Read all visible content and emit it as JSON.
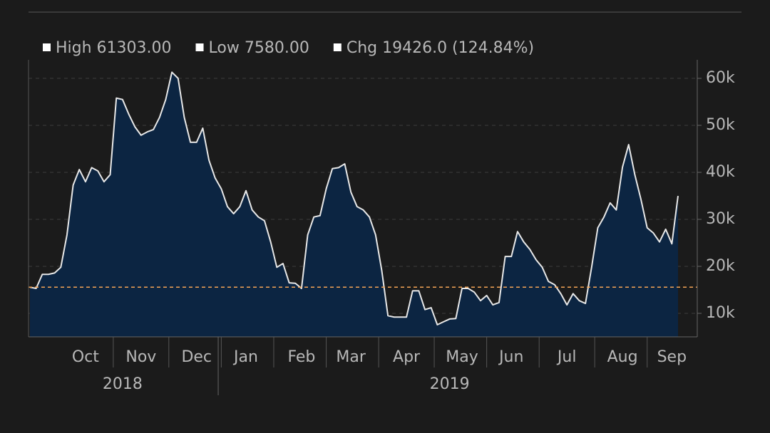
{
  "chart_data": {
    "type": "area",
    "legend_items": [
      "High 61303.00",
      "Low 7580.00",
      "Chg 19426.0 (124.84%)"
    ],
    "groups": [
      {
        "label": "2018",
        "categories": [
          null,
          null,
          null,
          null,
          null,
          null,
          null,
          null,
          null,
          "Oct",
          null,
          null,
          null,
          null,
          null,
          null,
          null,
          null,
          "Nov",
          null,
          null,
          null,
          null,
          null,
          null,
          null,
          null,
          "Dec",
          null,
          null,
          null
        ]
      },
      {
        "label": "2019",
        "categories": [
          null,
          null,
          null,
          null,
          "Jan",
          null,
          null,
          null,
          null,
          null,
          null,
          null,
          null,
          "Feb",
          null,
          null,
          null,
          null,
          null,
          null,
          null,
          "Mar",
          null,
          null,
          null,
          null,
          null,
          null,
          null,
          null,
          "Apr",
          null,
          null,
          null,
          null,
          null,
          null,
          null,
          null,
          "May",
          null,
          null,
          null,
          null,
          null,
          null,
          null,
          "Jun",
          null,
          null,
          null,
          null,
          null,
          null,
          null,
          null,
          "Jul",
          null,
          null,
          null,
          null,
          null,
          null,
          null,
          null,
          "Aug",
          null,
          null,
          null,
          null,
          null,
          null,
          null,
          "Sep",
          null
        ]
      }
    ],
    "series": [
      {
        "color": "#e8e8e8",
        "fill": "#0c2542",
        "values": [
          15561,
          15300,
          18300,
          18300,
          18600,
          19800,
          26700,
          37300,
          40600,
          38000,
          41000,
          40300,
          38000,
          39500,
          55800,
          55500,
          52400,
          49700,
          47900,
          48600,
          49100,
          51700,
          55500,
          61303,
          60000,
          51700,
          46400,
          46400,
          49400,
          42600,
          38800,
          36500,
          32700,
          31200,
          32700,
          36100,
          32000,
          30500,
          29700,
          25200,
          19800,
          20600,
          16500,
          16400,
          15300,
          26700,
          30500,
          30800,
          36500,
          40800,
          41000,
          41800,
          35800,
          32700,
          32000,
          30500,
          26700,
          19100,
          9500,
          9200,
          9200,
          9200,
          14800,
          14800,
          10800,
          11200,
          7580,
          8200,
          8800,
          8900,
          15300,
          15300,
          14500,
          12700,
          13800,
          11800,
          12300,
          22100,
          22100,
          27400,
          25200,
          23600,
          21400,
          19800,
          16800,
          16100,
          14200,
          11800,
          14200,
          12700,
          12100,
          19800,
          28200,
          30500,
          33500,
          32000,
          41100,
          45900,
          39500,
          34200,
          28200,
          27100,
          25200,
          27900,
          24800,
          34987
        ]
      }
    ],
    "reference_line": {
      "value": 15561,
      "color": "#f5a455"
    },
    "ylim": [
      5000,
      64000
    ],
    "yticks": [
      {
        "value": 10000,
        "label": "10k"
      },
      {
        "value": 20000,
        "label": "20k"
      },
      {
        "value": 30000,
        "label": "30k"
      },
      {
        "value": 40000,
        "label": "40k"
      },
      {
        "value": 50000,
        "label": "50k"
      },
      {
        "value": 60000,
        "label": "60k"
      }
    ],
    "grid": true
  }
}
